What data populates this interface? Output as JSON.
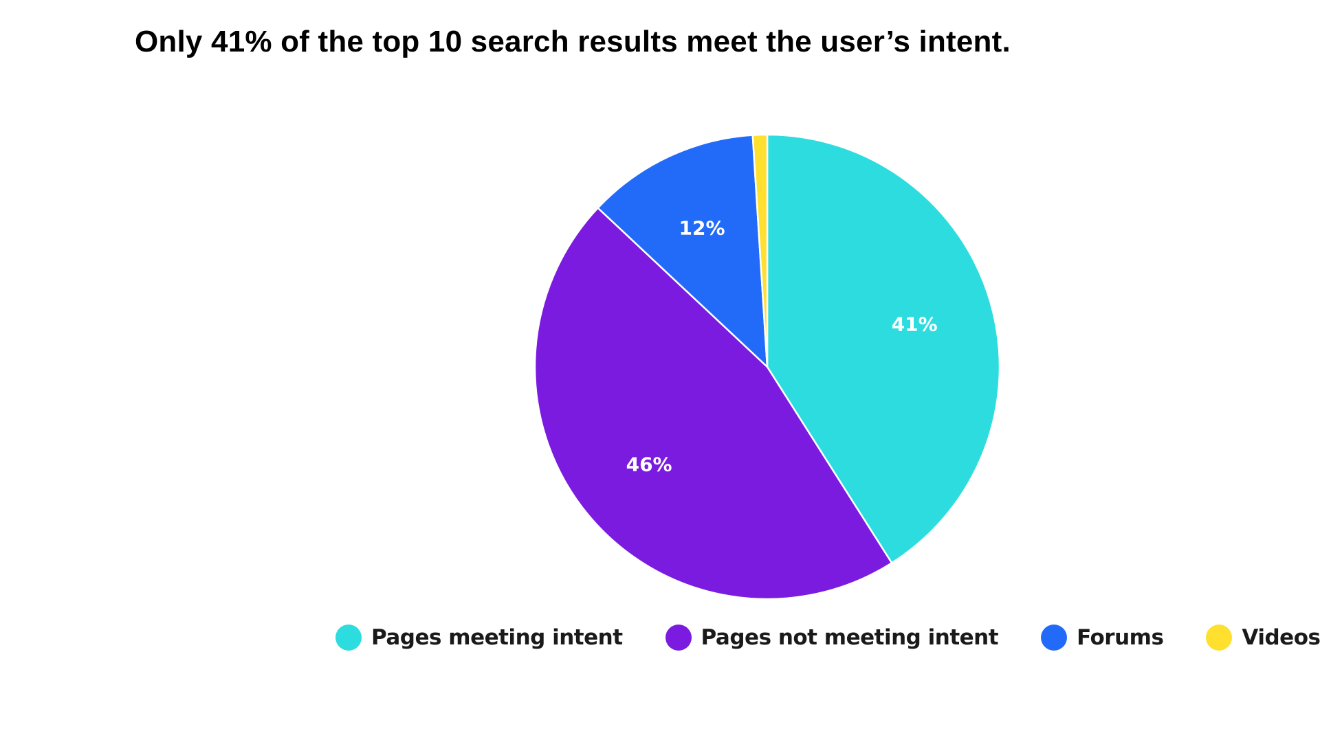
{
  "chart_data": {
    "type": "pie",
    "title": "Only 41% of the top 10 search results meet the user’s intent.",
    "slices": [
      {
        "label": "Pages meeting intent",
        "value": 41,
        "display": "41%",
        "color": "#2DDCDE"
      },
      {
        "label": "Pages not meeting intent",
        "value": 46,
        "display": "46%",
        "color": "#7B1BDF"
      },
      {
        "label": "Forums",
        "value": 12,
        "display": "12%",
        "color": "#226BF9"
      },
      {
        "label": "Videos",
        "value": 1,
        "display": "",
        "color": "#FFE02F"
      }
    ],
    "legend_position": "bottom",
    "start_angle": "top",
    "direction": "clockwise"
  }
}
